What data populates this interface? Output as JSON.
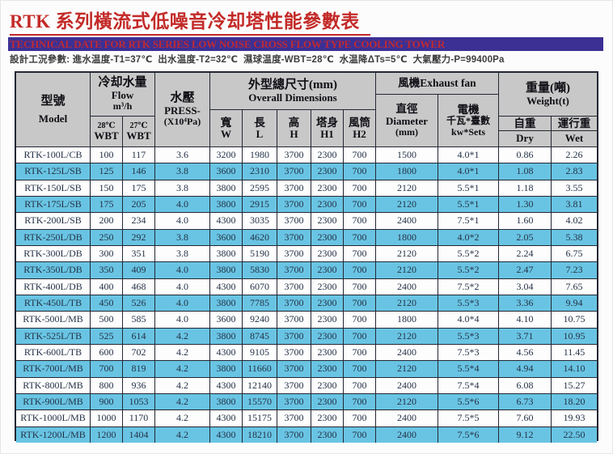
{
  "page": {
    "title": "RTK 系列橫流式低噪音冷却塔性能參數表",
    "subtitle": "TECHNICAL DATE FOR RTK SERIES LOW NOISE CROSS FLOW TYPE COOLING TOWER",
    "design_conditions": "設計工況參數: 進水温度-T1=37℃  出水温度-T2=32℃  濕球温度-WBT=28℃  水温降ΔTs=5℃  大氣壓力-P=99400Pa"
  },
  "colors": {
    "title_red": "#c32a28",
    "banner_background": "#3c3094",
    "banner_text_red": "#bf2a33",
    "header_gray": "#c8c8c8",
    "row_blue": "#69c4e3",
    "row_white": "#fdfdfd",
    "data_text_navy": "#243247",
    "border_dark": "#232733"
  },
  "table": {
    "header": {
      "model": {
        "zh": "型號",
        "en": "Model"
      },
      "flow": {
        "zh": "冷却水量",
        "en1": "Flow",
        "en2": "m³/h",
        "sub": [
          {
            "t": "28℃",
            "b": "WBT"
          },
          {
            "t": "27℃",
            "b": "WBT"
          }
        ]
      },
      "press": {
        "zh": "水壓",
        "en1": "PRESS-",
        "en2": "(X10⁴Pa)"
      },
      "dims": {
        "zh": "外型總尺寸(mm)",
        "en": "Overall Dimensions",
        "sub": [
          {
            "t": "寬",
            "b": "W"
          },
          {
            "t": "長",
            "b": "L"
          },
          {
            "t": "高",
            "b": "H"
          },
          {
            "t": "塔身",
            "b": "H1"
          },
          {
            "t": "風筒",
            "b": "H2"
          }
        ]
      },
      "fan": {
        "label": "風機Exhaust fan",
        "diameter": {
          "l1": "直徑",
          "l2": "Diameter",
          "l3": "(mm)"
        },
        "motor": {
          "l1": "電機",
          "l2": "千瓦*臺數",
          "l3": "kw*Sets"
        }
      },
      "weight": {
        "zh": "重量(噸)",
        "en": "Weight(t)",
        "dry_zh": "自重",
        "wet_zh": "運行重",
        "dry_en": "Dry",
        "wet_en": "Wet"
      }
    },
    "rows": [
      [
        "RTK-100L/CB",
        "100",
        "117",
        "3.6",
        "3200",
        "1980",
        "3700",
        "2300",
        "700",
        "1500",
        "4.0*1",
        "0.86",
        "2.26"
      ],
      [
        "RTK-125L/SB",
        "125",
        "146",
        "3.8",
        "3600",
        "2310",
        "3700",
        "2300",
        "700",
        "1800",
        "4.0*1",
        "1.08",
        "2.83"
      ],
      [
        "RTK-150L/SB",
        "150",
        "175",
        "3.8",
        "3800",
        "2595",
        "3700",
        "2300",
        "700",
        "2120",
        "5.5*1",
        "1.18",
        "3.55"
      ],
      [
        "RTK-175L/SB",
        "175",
        "205",
        "4.0",
        "3800",
        "2915",
        "3700",
        "2300",
        "700",
        "2120",
        "5.5*1",
        "1.30",
        "3.81"
      ],
      [
        "RTK-200L/SB",
        "200",
        "234",
        "4.0",
        "4300",
        "3035",
        "3700",
        "2300",
        "700",
        "2400",
        "7.5*1",
        "1.60",
        "4.02"
      ],
      [
        "RTK-250L/DB",
        "250",
        "292",
        "3.8",
        "3600",
        "4620",
        "3700",
        "2300",
        "700",
        "1800",
        "4.0*2",
        "2.05",
        "5.38"
      ],
      [
        "RTK-300L/DB",
        "300",
        "351",
        "3.8",
        "3800",
        "5190",
        "3700",
        "2300",
        "700",
        "2120",
        "5.5*2",
        "2.24",
        "6.75"
      ],
      [
        "RTK-350L/DB",
        "350",
        "409",
        "4.0",
        "3800",
        "5830",
        "3700",
        "2300",
        "700",
        "2120",
        "5.5*2",
        "2.47",
        "7.23"
      ],
      [
        "RTK-400L/DB",
        "400",
        "468",
        "4.0",
        "4300",
        "6070",
        "3700",
        "2300",
        "700",
        "2400",
        "7.5*2",
        "3.04",
        "7.65"
      ],
      [
        "RTK-450L/TB",
        "450",
        "526",
        "4.0",
        "3800",
        "7785",
        "3700",
        "2300",
        "700",
        "2120",
        "5.5*3",
        "3.36",
        "9.94"
      ],
      [
        "RTK-500L/MB",
        "500",
        "585",
        "4.0",
        "3600",
        "9240",
        "3700",
        "2300",
        "700",
        "1800",
        "4.0*4",
        "4.10",
        "10.75"
      ],
      [
        "RTK-525L/TB",
        "525",
        "614",
        "4.2",
        "3800",
        "8745",
        "3700",
        "2300",
        "700",
        "2120",
        "5.5*3",
        "3.71",
        "10.95"
      ],
      [
        "RTK-600L/TB",
        "600",
        "702",
        "4.2",
        "4300",
        "9105",
        "3700",
        "2300",
        "700",
        "2400",
        "7.5*3",
        "4.56",
        "11.45"
      ],
      [
        "RTK-700L/MB",
        "700",
        "819",
        "4.2",
        "3800",
        "11660",
        "3700",
        "2300",
        "700",
        "2120",
        "5.5*4",
        "4.94",
        "14.10"
      ],
      [
        "RTK-800L/MB",
        "800",
        "936",
        "4.2",
        "4300",
        "12140",
        "3700",
        "2300",
        "700",
        "2400",
        "7.5*4",
        "6.08",
        "15.27"
      ],
      [
        "RTK-900L/MB",
        "900",
        "1053",
        "4.2",
        "3800",
        "15570",
        "3700",
        "2300",
        "700",
        "2120",
        "5.5*6",
        "6.73",
        "18.20"
      ],
      [
        "RTK-1000L/MB",
        "1000",
        "1170",
        "4.2",
        "4300",
        "15175",
        "3700",
        "2300",
        "700",
        "2400",
        "7.5*5",
        "7.60",
        "19.93"
      ],
      [
        "RTK-1200L/MB",
        "1200",
        "1404",
        "4.2",
        "4300",
        "18210",
        "3700",
        "2300",
        "700",
        "2400",
        "7.5*6",
        "9.12",
        "22.50"
      ]
    ]
  }
}
